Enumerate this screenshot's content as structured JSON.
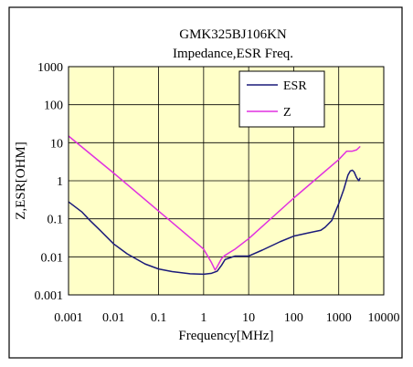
{
  "chart_data": {
    "type": "line",
    "title": "GMK325BJ106KN",
    "subtitle": "Impedance,ESR Freq.",
    "xlabel": "Frequency[MHz]",
    "ylabel": "Z,ESR[OHM]",
    "xscale": "log",
    "yscale": "log",
    "xlim": [
      0.001,
      10000
    ],
    "ylim": [
      0.001,
      1000
    ],
    "grid": true,
    "legend": "top-right",
    "background": "#ffffc8",
    "x_tick_labels": [
      "0.001",
      "0.01",
      "0.1",
      "1",
      "10",
      "100",
      "1000",
      "10000"
    ],
    "x_tick_values": [
      0.001,
      0.01,
      0.1,
      1,
      10,
      100,
      1000,
      10000
    ],
    "y_tick_labels": [
      "0.001",
      "0.01",
      "0.1",
      "1",
      "10",
      "100",
      "1000"
    ],
    "y_tick_values": [
      0.001,
      0.01,
      0.1,
      1,
      10,
      100,
      1000
    ],
    "series": [
      {
        "name": "ESR",
        "color": "#1a1a7a",
        "x": [
          0.001,
          0.002,
          0.003,
          0.005,
          0.01,
          0.02,
          0.05,
          0.1,
          0.2,
          0.5,
          1,
          1.5,
          2,
          2.5,
          3,
          5,
          10,
          20,
          50,
          100,
          200,
          400,
          500,
          700,
          1000,
          1300,
          1600,
          1800,
          2000,
          2200,
          2500,
          2800,
          3000
        ],
        "y": [
          0.28,
          0.15,
          0.09,
          0.05,
          0.022,
          0.012,
          0.0065,
          0.0048,
          0.0041,
          0.0036,
          0.0035,
          0.0037,
          0.0042,
          0.006,
          0.0085,
          0.0105,
          0.0105,
          0.015,
          0.025,
          0.035,
          0.042,
          0.05,
          0.06,
          0.09,
          0.25,
          0.6,
          1.4,
          1.8,
          1.9,
          1.7,
          1.2,
          1.0,
          1.2
        ]
      },
      {
        "name": "Z",
        "color": "#e030e0",
        "x": [
          0.001,
          0.01,
          0.1,
          0.5,
          1,
          1.5,
          1.8,
          2,
          2.5,
          3,
          5,
          10,
          100,
          1000,
          1500,
          2000,
          2500,
          3000
        ],
        "y": [
          15,
          1.6,
          0.16,
          0.032,
          0.016,
          0.007,
          0.0045,
          0.0055,
          0.009,
          0.011,
          0.016,
          0.03,
          0.35,
          3.6,
          6,
          6,
          6.5,
          8
        ]
      }
    ]
  }
}
